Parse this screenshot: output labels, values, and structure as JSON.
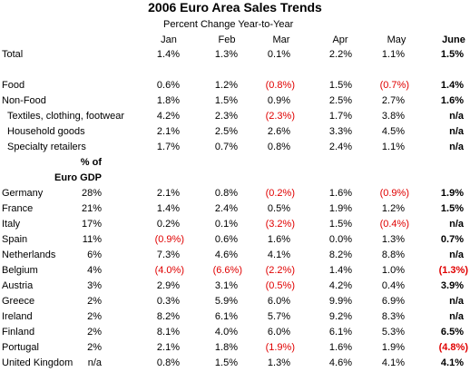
{
  "table": {
    "title": "2006 Euro Area Sales Trends",
    "subtitle": "Percent Change Year-to-Year",
    "columns": [
      "Jan",
      "Feb",
      "Mar",
      "Apr",
      "May",
      "June"
    ],
    "gdp_header": [
      "% of",
      "Euro GDP"
    ],
    "sections": [
      {
        "rows": [
          {
            "label": "Total",
            "values": [
              "1.4%",
              "1.3%",
              "0.1%",
              "2.2%",
              "1.1%",
              "1.5%"
            ]
          }
        ]
      },
      {
        "rows": [
          {
            "label": "Food",
            "values": [
              "0.6%",
              "1.2%",
              "(0.8%)",
              "1.5%",
              "(0.7%)",
              "1.4%"
            ]
          },
          {
            "label": "Non-Food",
            "values": [
              "1.8%",
              "1.5%",
              "0.9%",
              "2.5%",
              "2.7%",
              "1.6%"
            ]
          },
          {
            "label": "Textiles, clothing, footwear",
            "values": [
              "4.2%",
              "2.3%",
              "(2.3%)",
              "1.7%",
              "3.8%",
              "n/a"
            ]
          },
          {
            "label": "Household goods",
            "values": [
              "2.1%",
              "2.5%",
              "2.6%",
              "3.3%",
              "4.5%",
              "n/a"
            ]
          },
          {
            "label": "Specialty retailers",
            "values": [
              "1.7%",
              "0.7%",
              "0.8%",
              "2.4%",
              "1.1%",
              "n/a"
            ]
          }
        ]
      },
      {
        "rows": [
          {
            "label": "Germany",
            "gdp": "28%",
            "values": [
              "2.1%",
              "0.8%",
              "(0.2%)",
              "1.6%",
              "(0.9%)",
              "1.9%"
            ]
          },
          {
            "label": "France",
            "gdp": "21%",
            "values": [
              "1.4%",
              "2.4%",
              "0.5%",
              "1.9%",
              "1.2%",
              "1.5%"
            ]
          },
          {
            "label": "Italy",
            "gdp": "17%",
            "values": [
              "0.2%",
              "0.1%",
              "(3.2%)",
              "1.5%",
              "(0.4%)",
              "n/a"
            ]
          },
          {
            "label": "Spain",
            "gdp": "11%",
            "values": [
              "(0.9%)",
              "0.6%",
              "1.6%",
              "0.0%",
              "1.3%",
              "0.7%"
            ]
          },
          {
            "label": "Netherlands",
            "gdp": "6%",
            "values": [
              "7.3%",
              "4.6%",
              "4.1%",
              "8.2%",
              "8.8%",
              "n/a"
            ]
          },
          {
            "label": "Belgium",
            "gdp": "4%",
            "values": [
              "(4.0%)",
              "(6.6%)",
              "(2.2%)",
              "1.4%",
              "1.0%",
              "(1.3%)"
            ]
          },
          {
            "label": "Austria",
            "gdp": "3%",
            "values": [
              "2.9%",
              "3.1%",
              "(0.5%)",
              "4.2%",
              "0.4%",
              "3.9%"
            ]
          },
          {
            "label": "Greece",
            "gdp": "2%",
            "values": [
              "0.3%",
              "5.9%",
              "6.0%",
              "9.9%",
              "6.9%",
              "n/a"
            ]
          },
          {
            "label": "Ireland",
            "gdp": "2%",
            "values": [
              "8.2%",
              "6.1%",
              "5.7%",
              "9.2%",
              "8.3%",
              "n/a"
            ]
          },
          {
            "label": "Finland",
            "gdp": "2%",
            "values": [
              "8.1%",
              "4.0%",
              "6.0%",
              "6.1%",
              "5.3%",
              "6.5%"
            ]
          },
          {
            "label": "Portugal",
            "gdp": "2%",
            "values": [
              "2.1%",
              "1.8%",
              "(1.9%)",
              "1.6%",
              "1.9%",
              "(4.8%)"
            ]
          },
          {
            "label": "United Kingdom",
            "gdp": "n/a",
            "values": [
              "0.8%",
              "1.5%",
              "1.3%",
              "4.6%",
              "4.1%",
              "4.1%"
            ]
          }
        ]
      }
    ]
  }
}
